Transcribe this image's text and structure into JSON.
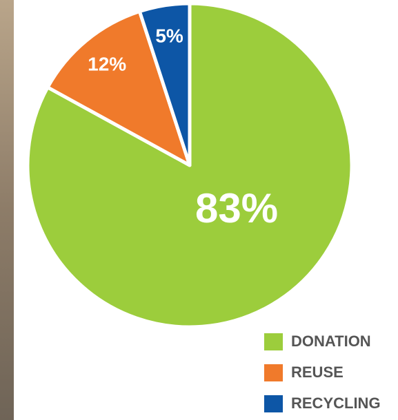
{
  "chart_data": {
    "type": "pie",
    "categories": [
      "DONATION",
      "REUSE",
      "RECYCLING"
    ],
    "values": [
      83,
      12,
      5
    ],
    "value_labels": [
      "83%",
      "12%",
      "5%"
    ],
    "colors": [
      "#9ccd3c",
      "#f07a2b",
      "#0d56a6"
    ],
    "legend": "bottom-right"
  }
}
